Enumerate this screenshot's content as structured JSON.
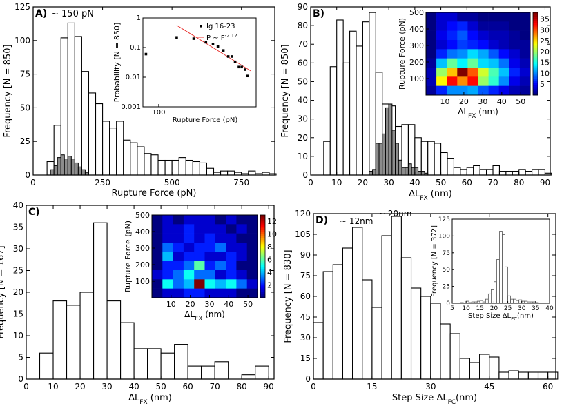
{
  "chart_data": [
    {
      "id": "A",
      "type": "bar",
      "panel_label": "A)",
      "annotation": "~ 150 pN",
      "xlabel": "Rupture Force (pN)",
      "ylabel": "Frequency [N = 850]",
      "xlim": [
        0,
        870
      ],
      "ylim": [
        0,
        125
      ],
      "xticks": [
        0,
        250,
        500,
        750
      ],
      "yticks": [
        0,
        25,
        50,
        75,
        100,
        125
      ],
      "bin_width": 25,
      "series": [
        {
          "name": "all",
          "style": "open",
          "bin_starts": [
            50,
            75,
            100,
            125,
            150,
            175,
            200,
            225,
            250,
            275,
            300,
            325,
            350,
            375,
            400,
            425,
            450,
            475,
            500,
            525,
            550,
            575,
            600,
            625,
            650,
            675,
            700,
            725,
            750,
            775,
            800,
            825,
            850
          ],
          "values": [
            10,
            37,
            102,
            113,
            103,
            77,
            61,
            53,
            40,
            35,
            40,
            26,
            24,
            21,
            16,
            15,
            11,
            11,
            11,
            13,
            11,
            10,
            9,
            5,
            2,
            3,
            3,
            2,
            1,
            3,
            1,
            2,
            1
          ]
        },
        {
          "name": "subset",
          "style": "grey",
          "bin_starts": [
            62.5,
            75,
            87.5,
            100,
            112.5,
            125,
            137.5,
            150,
            162.5,
            175,
            187.5
          ],
          "values": [
            4,
            7,
            13,
            15,
            12,
            14,
            12,
            9,
            6,
            4,
            2
          ],
          "bin_width": 12.5
        }
      ],
      "inset": {
        "type": "scatter",
        "scale": "log-log",
        "xlabel": "Rupture Force (pN)",
        "ylabel": "Probability [N = 850]",
        "xticks": [
          "100",
          "1000"
        ],
        "yticks": [
          "0.001",
          "0.01",
          "0.1",
          "1"
        ],
        "legend": [
          "Ig 16-23",
          "P ~ F"
        ],
        "legend_exponent": "-2.12",
        "points_x": [
          75,
          150,
          220,
          290,
          340,
          380,
          430,
          480,
          520,
          560,
          610,
          650,
          700,
          740
        ],
        "points_y": [
          0.06,
          0.22,
          0.2,
          0.15,
          0.13,
          0.11,
          0.08,
          0.05,
          0.05,
          0.033,
          0.022,
          0.022,
          0.018,
          0.011
        ],
        "fit_exponent": -2.12
      }
    },
    {
      "id": "B",
      "type": "bar",
      "panel_label": "B)",
      "xlabel": "ΔL",
      "xlabel_sub": "FX",
      "xlabel_unit": " (nm)",
      "ylabel": "Frequency [N = 850]",
      "xlim": [
        0,
        92
      ],
      "ylim": [
        0,
        90
      ],
      "xticks": [
        0,
        10,
        20,
        30,
        40,
        50,
        60,
        70,
        80,
        90
      ],
      "yticks": [
        0,
        10,
        20,
        30,
        40,
        50,
        60,
        70,
        80,
        90
      ],
      "bin_width": 2.5,
      "series": [
        {
          "name": "all",
          "style": "open",
          "bin_starts": [
            5,
            7.5,
            10,
            12.5,
            15,
            17.5,
            20,
            22.5,
            25,
            27.5,
            30,
            32.5,
            35,
            37.5,
            40,
            42.5,
            45,
            47.5,
            50,
            52.5,
            55,
            57.5,
            60,
            62.5,
            65,
            67.5,
            70,
            72.5,
            75,
            77.5,
            80,
            82.5,
            85,
            87.5,
            90
          ],
          "values": [
            18,
            58,
            83,
            60,
            77,
            69,
            82,
            87,
            55,
            38,
            37,
            26,
            27,
            27,
            20,
            18,
            18,
            17,
            12,
            9,
            4,
            3,
            4,
            5,
            3,
            3,
            5,
            2,
            2,
            2,
            3,
            2,
            3,
            3,
            1
          ]
        },
        {
          "name": "subset",
          "style": "grey",
          "bin_starts": [
            22.5,
            23.75,
            25,
            26.25,
            27.5,
            28.75,
            30,
            31.25,
            32.5,
            33.75,
            35,
            36.25,
            37.5,
            38.75,
            40,
            41.25,
            42.5,
            43.75
          ],
          "values": [
            2,
            3,
            17,
            17,
            22,
            36,
            38,
            24,
            17,
            8,
            4,
            4,
            6,
            4,
            4,
            2,
            2,
            1
          ],
          "bin_width": 1.25
        }
      ],
      "inset": {
        "type": "heatmap",
        "xlabel": "ΔL",
        "xlabel_sub": "FX",
        "xlabel_unit": " (nm)",
        "ylabel": "Rupture Force (pN)",
        "xticks": [
          "10",
          "20",
          "30",
          "40",
          "50"
        ],
        "yticks": [
          "100",
          "200",
          "300",
          "400",
          "500"
        ],
        "colorbar_ticks": [
          "5",
          "10",
          "15",
          "20",
          "25",
          "30",
          "35"
        ],
        "vmax": 38,
        "grid": [
          [
            0,
            3,
            3,
            1,
            1,
            0,
            0,
            0,
            0,
            0
          ],
          [
            0,
            3,
            5,
            6,
            3,
            1,
            1,
            1,
            0,
            0
          ],
          [
            0,
            4,
            6,
            8,
            5,
            3,
            2,
            2,
            1,
            0
          ],
          [
            0,
            3,
            5,
            7,
            6,
            5,
            3,
            2,
            1,
            1
          ],
          [
            0,
            6,
            9,
            10,
            13,
            11,
            8,
            5,
            3,
            1
          ],
          [
            1,
            12,
            18,
            14,
            18,
            13,
            12,
            9,
            4,
            2
          ],
          [
            2,
            20,
            26,
            38,
            30,
            22,
            17,
            12,
            6,
            3
          ],
          [
            2,
            24,
            33,
            28,
            33,
            20,
            16,
            10,
            4,
            2
          ],
          [
            1,
            6,
            10,
            10,
            11,
            8,
            6,
            4,
            2,
            1
          ]
        ]
      }
    },
    {
      "id": "C",
      "type": "bar",
      "panel_label": "C)",
      "xlabel": "ΔL",
      "xlabel_sub": "FX",
      "xlabel_unit": " (nm)",
      "ylabel": "Frequency [N = 167]",
      "xlim": [
        0,
        92
      ],
      "ylim": [
        0,
        40
      ],
      "xticks": [
        0,
        10,
        20,
        30,
        40,
        50,
        60,
        70,
        80,
        90
      ],
      "yticks": [
        0,
        5,
        10,
        15,
        20,
        25,
        30,
        35,
        40
      ],
      "bin_width": 5,
      "series": [
        {
          "name": "all",
          "style": "open",
          "bin_starts": [
            5,
            10,
            15,
            20,
            25,
            30,
            35,
            40,
            45,
            50,
            55,
            60,
            65,
            70,
            75,
            80,
            85
          ],
          "values": [
            6,
            18,
            17,
            20,
            36,
            18,
            13,
            7,
            7,
            6,
            8,
            3,
            3,
            4,
            0,
            1,
            3
          ]
        }
      ],
      "inset": {
        "type": "heatmap",
        "xlabel": "ΔL",
        "xlabel_sub": "FX",
        "xlabel_unit": " (nm)",
        "ylabel": "Rupture Force (pN)",
        "xticks": [
          "10",
          "20",
          "30",
          "40",
          "50"
        ],
        "yticks": [
          "100",
          "200",
          "300",
          "400",
          "500"
        ],
        "colorbar_ticks": [
          "2",
          "4",
          "6",
          "8",
          "10",
          "12"
        ],
        "vmax": 13,
        "grid": [
          [
            0,
            1,
            0,
            1,
            1,
            1,
            0,
            1,
            0,
            0
          ],
          [
            0,
            1,
            1,
            2,
            1,
            1,
            1,
            0,
            1,
            0
          ],
          [
            0,
            1,
            1,
            2,
            1,
            2,
            1,
            1,
            0,
            0
          ],
          [
            0,
            3,
            2,
            1,
            2,
            2,
            3,
            1,
            1,
            0
          ],
          [
            0,
            4,
            1,
            2,
            2,
            1,
            1,
            2,
            1,
            0
          ],
          [
            0,
            2,
            2,
            3,
            6,
            2,
            3,
            2,
            0,
            0
          ],
          [
            1,
            2,
            3,
            5,
            3,
            3,
            1,
            2,
            1,
            0
          ],
          [
            0,
            5,
            3,
            4,
            13,
            5,
            4,
            5,
            3,
            1
          ],
          [
            0,
            1,
            1,
            2,
            2,
            1,
            1,
            1,
            0,
            0
          ]
        ]
      }
    },
    {
      "id": "D",
      "type": "bar",
      "panel_label": "D)",
      "annotations": [
        "~ 12nm",
        "~ 20nm"
      ],
      "xlabel": "Step Size ΔL",
      "xlabel_sub": "FC",
      "xlabel_unit": "(nm)",
      "ylabel": "Frequency [N = 830]",
      "xlim": [
        0,
        62
      ],
      "ylim": [
        0,
        120
      ],
      "xticks": [
        0,
        15,
        30,
        45,
        60
      ],
      "yticks": [
        0,
        15,
        30,
        45,
        60,
        75,
        90,
        105,
        120
      ],
      "bin_width": 2.5,
      "series": [
        {
          "name": "all",
          "style": "open",
          "bin_starts": [
            0,
            2.5,
            5,
            7.5,
            10,
            12.5,
            15,
            17.5,
            20,
            22.5,
            25,
            27.5,
            30,
            32.5,
            35,
            37.5,
            40,
            42.5,
            45,
            47.5,
            50,
            52.5,
            55,
            57.5,
            60
          ],
          "values": [
            41,
            78,
            83,
            95,
            110,
            72,
            52,
            104,
            118,
            88,
            66,
            60,
            55,
            40,
            33,
            15,
            12,
            18,
            16,
            5,
            6,
            5,
            5,
            5,
            5
          ]
        }
      ],
      "inset": {
        "type": "bar",
        "xlabel": "Step Size ΔL",
        "xlabel_sub": "FC",
        "xlabel_unit": "(nm)",
        "ylabel": "Frequency [N = 372]",
        "xlim": [
          5,
          40
        ],
        "ylim": [
          0,
          125
        ],
        "xticks": [
          5,
          10,
          15,
          20,
          25,
          30,
          35,
          40
        ],
        "yticks": [
          0,
          25,
          50,
          75,
          100,
          125
        ],
        "bin_width": 1,
        "bin_starts": [
          8,
          10,
          11,
          12,
          13,
          14,
          15,
          16,
          17,
          18,
          19,
          20,
          21,
          22,
          23,
          24,
          25,
          26,
          27,
          28,
          29,
          30,
          31,
          32,
          33,
          34,
          35
        ],
        "values": [
          1,
          3,
          1,
          2,
          2,
          3,
          4,
          2,
          6,
          14,
          20,
          32,
          65,
          107,
          102,
          54,
          11,
          6,
          6,
          4,
          5,
          3,
          3,
          2,
          2,
          2,
          1
        ]
      }
    }
  ]
}
